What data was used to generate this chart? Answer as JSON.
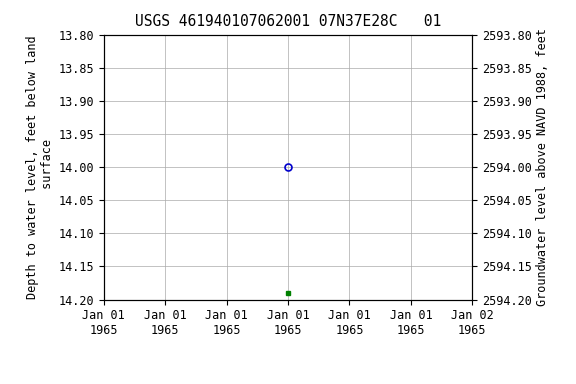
{
  "title": "USGS 461940107062001 07N37E28C   01",
  "ylabel_left": "Depth to water level, feet below land\n surface",
  "ylabel_right": "Groundwater level above NAVD 1988, feet",
  "ylim_left": [
    13.8,
    14.2
  ],
  "ylim_right": [
    2593.8,
    2594.2
  ],
  "yticks_left": [
    13.8,
    13.85,
    13.9,
    13.95,
    14.0,
    14.05,
    14.1,
    14.15,
    14.2
  ],
  "yticks_right": [
    2593.8,
    2593.85,
    2593.9,
    2593.95,
    2594.0,
    2594.05,
    2594.1,
    2594.15,
    2594.2
  ],
  "ytick_labels_left": [
    "13.80",
    "13.85",
    "13.90",
    "13.95",
    "14.00",
    "14.05",
    "14.10",
    "14.15",
    "14.20"
  ],
  "ytick_labels_right": [
    "2593.80",
    "2593.85",
    "2593.90",
    "2593.95",
    "2594.00",
    "2594.05",
    "2594.10",
    "2594.15",
    "2594.20"
  ],
  "blue_circle_value": 14.0,
  "green_square_value": 14.19,
  "blue_circle_color": "#0000cc",
  "green_square_color": "#008000",
  "background_color": "#ffffff",
  "grid_color": "#aaaaaa",
  "xtick_labels_line1": [
    "Jan 01",
    "Jan 01",
    "Jan 01",
    "Jan 01",
    "Jan 01",
    "Jan 01",
    "Jan 02"
  ],
  "xtick_labels_line2": [
    "1965",
    "1965",
    "1965",
    "1965",
    "1965",
    "1965",
    "1965"
  ],
  "legend_color": "#008000",
  "title_fontsize": 10.5,
  "tick_fontsize": 8.5,
  "label_fontsize": 8.5
}
